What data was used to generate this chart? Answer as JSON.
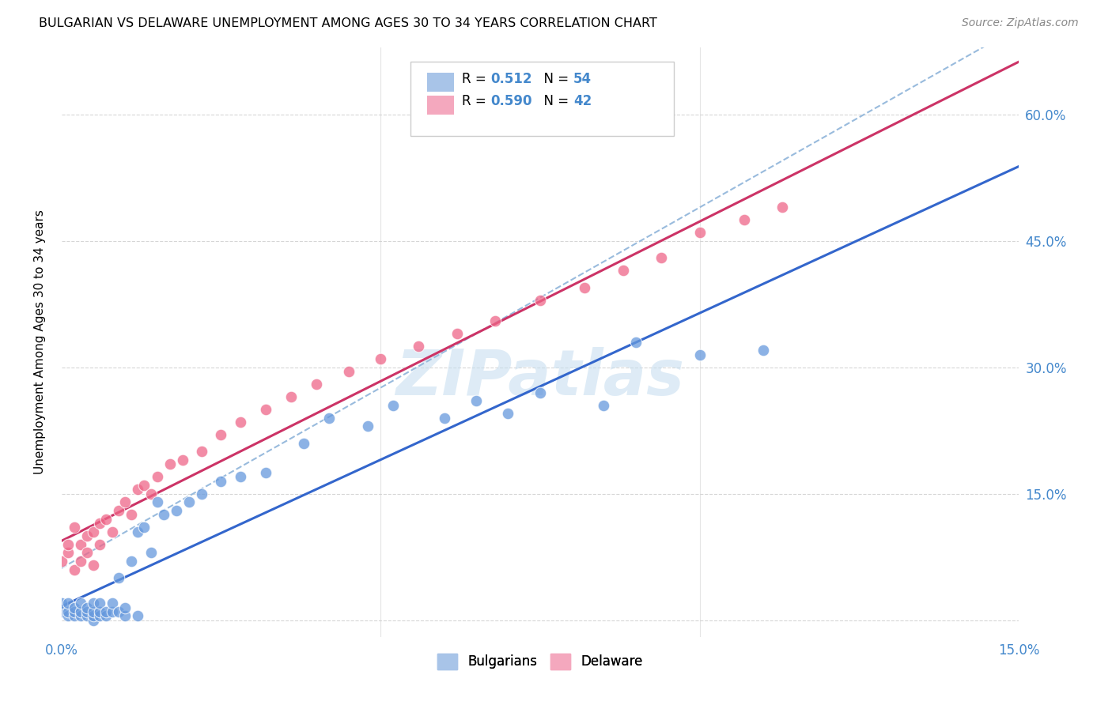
{
  "title": "BULGARIAN VS DELAWARE UNEMPLOYMENT AMONG AGES 30 TO 34 YEARS CORRELATION CHART",
  "source": "Source: ZipAtlas.com",
  "ylabel": "Unemployment Among Ages 30 to 34 years",
  "xlim": [
    0.0,
    0.15
  ],
  "ylim": [
    -0.02,
    0.68
  ],
  "xtick_positions": [
    0.0,
    0.05,
    0.1,
    0.15
  ],
  "xtick_labels": [
    "0.0%",
    "",
    "",
    "15.0%"
  ],
  "ytick_positions": [
    0.0,
    0.15,
    0.3,
    0.45,
    0.6
  ],
  "ytick_labels_right": [
    "",
    "15.0%",
    "30.0%",
    "45.0%",
    "60.0%"
  ],
  "bulgarian_scatter_x": [
    0.0,
    0.0,
    0.001,
    0.001,
    0.001,
    0.002,
    0.002,
    0.002,
    0.003,
    0.003,
    0.003,
    0.004,
    0.004,
    0.004,
    0.005,
    0.005,
    0.005,
    0.005,
    0.006,
    0.006,
    0.006,
    0.007,
    0.007,
    0.008,
    0.008,
    0.009,
    0.009,
    0.01,
    0.01,
    0.011,
    0.012,
    0.012,
    0.013,
    0.014,
    0.015,
    0.016,
    0.018,
    0.02,
    0.022,
    0.025,
    0.028,
    0.032,
    0.038,
    0.042,
    0.048,
    0.052,
    0.06,
    0.065,
    0.07,
    0.075,
    0.085,
    0.09,
    0.1,
    0.11
  ],
  "bulgarian_scatter_y": [
    0.01,
    0.02,
    0.005,
    0.01,
    0.02,
    0.005,
    0.01,
    0.015,
    0.005,
    0.01,
    0.02,
    0.005,
    0.01,
    0.015,
    0.0,
    0.005,
    0.01,
    0.02,
    0.005,
    0.01,
    0.02,
    0.005,
    0.01,
    0.01,
    0.02,
    0.01,
    0.05,
    0.005,
    0.015,
    0.07,
    0.005,
    0.105,
    0.11,
    0.08,
    0.14,
    0.125,
    0.13,
    0.14,
    0.15,
    0.165,
    0.17,
    0.175,
    0.21,
    0.24,
    0.23,
    0.255,
    0.24,
    0.26,
    0.245,
    0.27,
    0.255,
    0.33,
    0.315,
    0.32
  ],
  "delaware_scatter_x": [
    0.0,
    0.001,
    0.001,
    0.002,
    0.002,
    0.003,
    0.003,
    0.004,
    0.004,
    0.005,
    0.005,
    0.006,
    0.006,
    0.007,
    0.008,
    0.009,
    0.01,
    0.011,
    0.012,
    0.013,
    0.014,
    0.015,
    0.017,
    0.019,
    0.022,
    0.025,
    0.028,
    0.032,
    0.036,
    0.04,
    0.045,
    0.05,
    0.056,
    0.062,
    0.068,
    0.075,
    0.082,
    0.088,
    0.094,
    0.1,
    0.107,
    0.113
  ],
  "delaware_scatter_y": [
    0.07,
    0.08,
    0.09,
    0.06,
    0.11,
    0.07,
    0.09,
    0.08,
    0.1,
    0.065,
    0.105,
    0.09,
    0.115,
    0.12,
    0.105,
    0.13,
    0.14,
    0.125,
    0.155,
    0.16,
    0.15,
    0.17,
    0.185,
    0.19,
    0.2,
    0.22,
    0.235,
    0.25,
    0.265,
    0.28,
    0.295,
    0.31,
    0.325,
    0.34,
    0.355,
    0.38,
    0.395,
    0.415,
    0.43,
    0.46,
    0.475,
    0.49
  ],
  "bulgarian_line_color": "#3366cc",
  "delaware_line_color": "#cc3366",
  "dash_line_color": "#99bbdd",
  "scatter_bulgarian_color": "#6699dd",
  "scatter_delaware_color": "#ee6688",
  "bg_color": "#ffffff",
  "grid_color": "#cccccc",
  "watermark": "ZIPatlas",
  "watermark_color": "#c8dff0",
  "tick_color": "#4488cc",
  "title_fontsize": 11.5,
  "source_fontsize": 10,
  "axis_label_fontsize": 11,
  "tick_fontsize": 12
}
